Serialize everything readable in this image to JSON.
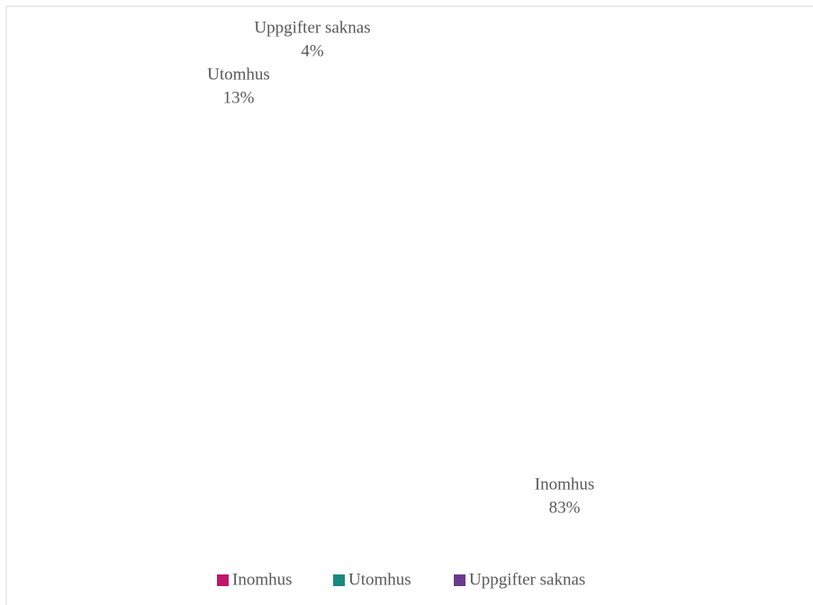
{
  "chart_data": {
    "type": "pie",
    "categories": [
      "Inomhus",
      "Utomhus",
      "Uppgifter saknas"
    ],
    "values": [
      83,
      13,
      4
    ],
    "value_labels": [
      "83%",
      "13%",
      "4%"
    ],
    "colors": [
      "#c0176b",
      "#1a8a80",
      "#6b3a8c"
    ],
    "legend": "bottom"
  }
}
